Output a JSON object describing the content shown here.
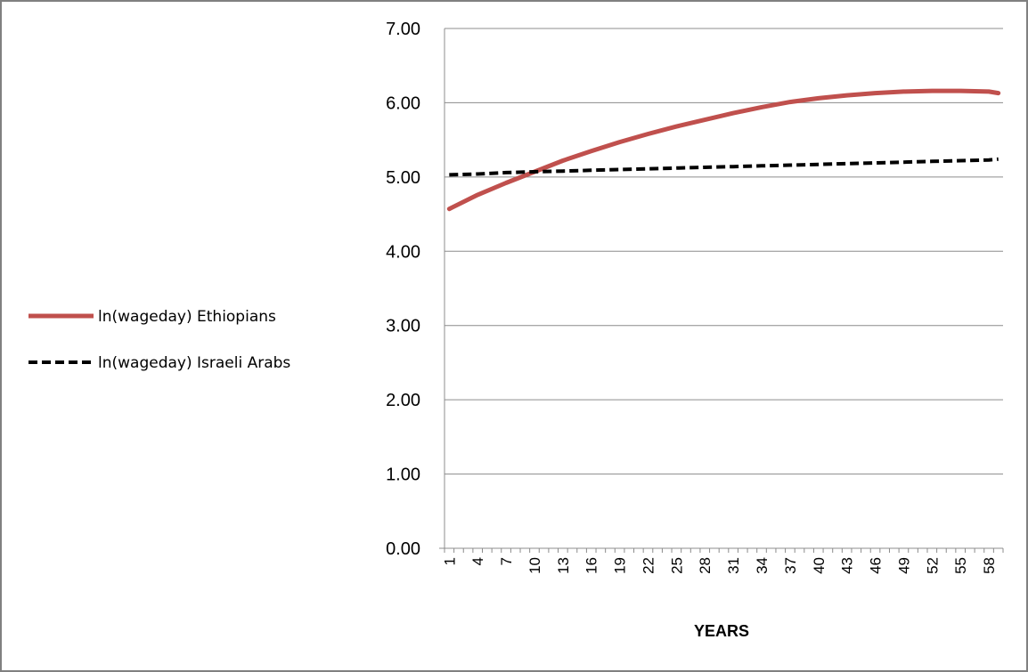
{
  "chart_data": {
    "type": "line",
    "title": "",
    "xlabel": "YEARS",
    "ylabel": "",
    "ylim": [
      0,
      7
    ],
    "y_ticks": [
      "0.00",
      "1.00",
      "2.00",
      "3.00",
      "4.00",
      "5.00",
      "6.00",
      "7.00"
    ],
    "x_tick_labels": [
      "1",
      "4",
      "7",
      "10",
      "13",
      "16",
      "19",
      "22",
      "25",
      "28",
      "31",
      "34",
      "37",
      "40",
      "43",
      "46",
      "49",
      "52",
      "55",
      "58"
    ],
    "x": [
      1,
      4,
      7,
      10,
      13,
      16,
      19,
      22,
      25,
      28,
      31,
      34,
      37,
      40,
      43,
      46,
      49,
      52,
      55,
      58,
      59
    ],
    "grid": "horizontal",
    "legend_position": "left",
    "series": [
      {
        "name": "ln(wageday) Ethiopians",
        "color": "#c0504d",
        "style": "solid",
        "values": [
          4.57,
          4.76,
          4.92,
          5.07,
          5.22,
          5.35,
          5.47,
          5.58,
          5.68,
          5.77,
          5.86,
          5.94,
          6.01,
          6.06,
          6.1,
          6.13,
          6.15,
          6.16,
          6.16,
          6.15,
          6.13
        ]
      },
      {
        "name": "ln(wageday) Israeli Arabs",
        "color": "#000000",
        "style": "dashed",
        "values": [
          5.03,
          5.04,
          5.06,
          5.07,
          5.08,
          5.09,
          5.1,
          5.11,
          5.12,
          5.13,
          5.14,
          5.15,
          5.16,
          5.17,
          5.18,
          5.19,
          5.2,
          5.21,
          5.22,
          5.23,
          5.24
        ]
      }
    ]
  }
}
